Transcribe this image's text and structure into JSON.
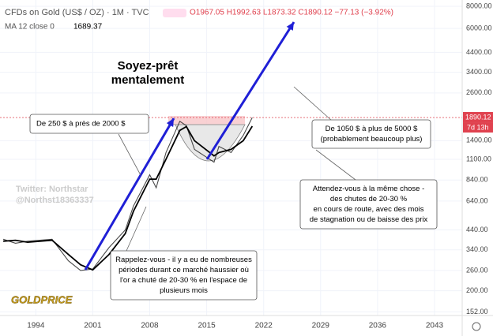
{
  "chart_data": {
    "type": "line",
    "title": "CFDs on Gold (US$ / OZ) · 1M · TVC",
    "ohlc": "O1967.05 H1992.63 L1873.32 C1890.12 −77.13 (−3.92%)",
    "log_scale": true,
    "x": [
      1990,
      1991.5,
      1993,
      1996,
      1998,
      1999.5,
      2001,
      2003,
      2005,
      2006,
      2008,
      2008.8,
      2010,
      2011.7,
      2012.5,
      2013.5,
      2015.9,
      2016.5,
      2018,
      2019.5,
      2020.6
    ],
    "series": [
      {
        "color": "#2a2a2a",
        "values": [
          390,
          370,
          380,
          390,
          295,
          260,
          265,
          350,
          440,
          600,
          900,
          760,
          1200,
          1800,
          1700,
          1250,
          1060,
          1300,
          1200,
          1500,
          1890.12
        ]
      },
      {
        "name": "MA 12 close 0",
        "color": "#000000",
        "values": [
          380,
          385,
          375,
          385,
          320,
          280,
          262,
          320,
          420,
          560,
          850,
          850,
          1100,
          1600,
          1680,
          1400,
          1150,
          1200,
          1250,
          1400,
          1689.37
        ]
      }
    ],
    "last_price": 1890.12,
    "countdown": "7d 13h",
    "xlim": [
      1989.6,
      2046.4
    ],
    "xticks": [
      1994,
      2001,
      2008,
      2015,
      2022,
      2029,
      2036,
      2043
    ],
    "ylim": [
      145,
      8000
    ],
    "yticks": [
      {
        "value": 8000,
        "label": "8000.00"
      },
      {
        "value": 6000,
        "label": "6000.00"
      },
      {
        "value": 4400,
        "label": "4400.00"
      },
      {
        "value": 3400,
        "label": "3400.00"
      },
      {
        "value": 2600,
        "label": "2600.00"
      },
      {
        "value": 1400,
        "label": "1400.00"
      },
      {
        "value": 1100,
        "label": "1100.00"
      },
      {
        "value": 840,
        "label": "840.00"
      },
      {
        "value": 640,
        "label": "640.00"
      },
      {
        "value": 440,
        "label": "440.00"
      },
      {
        "value": 340,
        "label": "340.00"
      },
      {
        "value": 260,
        "label": "260.00"
      },
      {
        "value": 200,
        "label": "200.00"
      },
      {
        "value": 152,
        "label": "152.00"
      }
    ],
    "annotations": {
      "headline": [
        "Soyez-prêt",
        "mentalement"
      ],
      "left_box": [
        "De 250 $ à près de 2000 $"
      ],
      "right_box": [
        "De 1050 $ à plus de 5000 $",
        "(probablement beaucoup plus)"
      ],
      "expect_box": [
        "Attendez-vous à la même chose -",
        "des chutes de 20-30 %",
        "en cours de route, avec des mois",
        "de stagnation ou de baisse des prix"
      ],
      "remember_box": [
        "Rappelez-vous - il y a eu de nombreuses",
        "périodes durant ce marché haussier où",
        "l'or a chuté de 20-30 % en l'espace de",
        "plusieurs mois"
      ],
      "twitter": [
        "Twitter:  Northstar",
        "@Northst18363337"
      ],
      "logo": "GOLDPRICE"
    }
  }
}
